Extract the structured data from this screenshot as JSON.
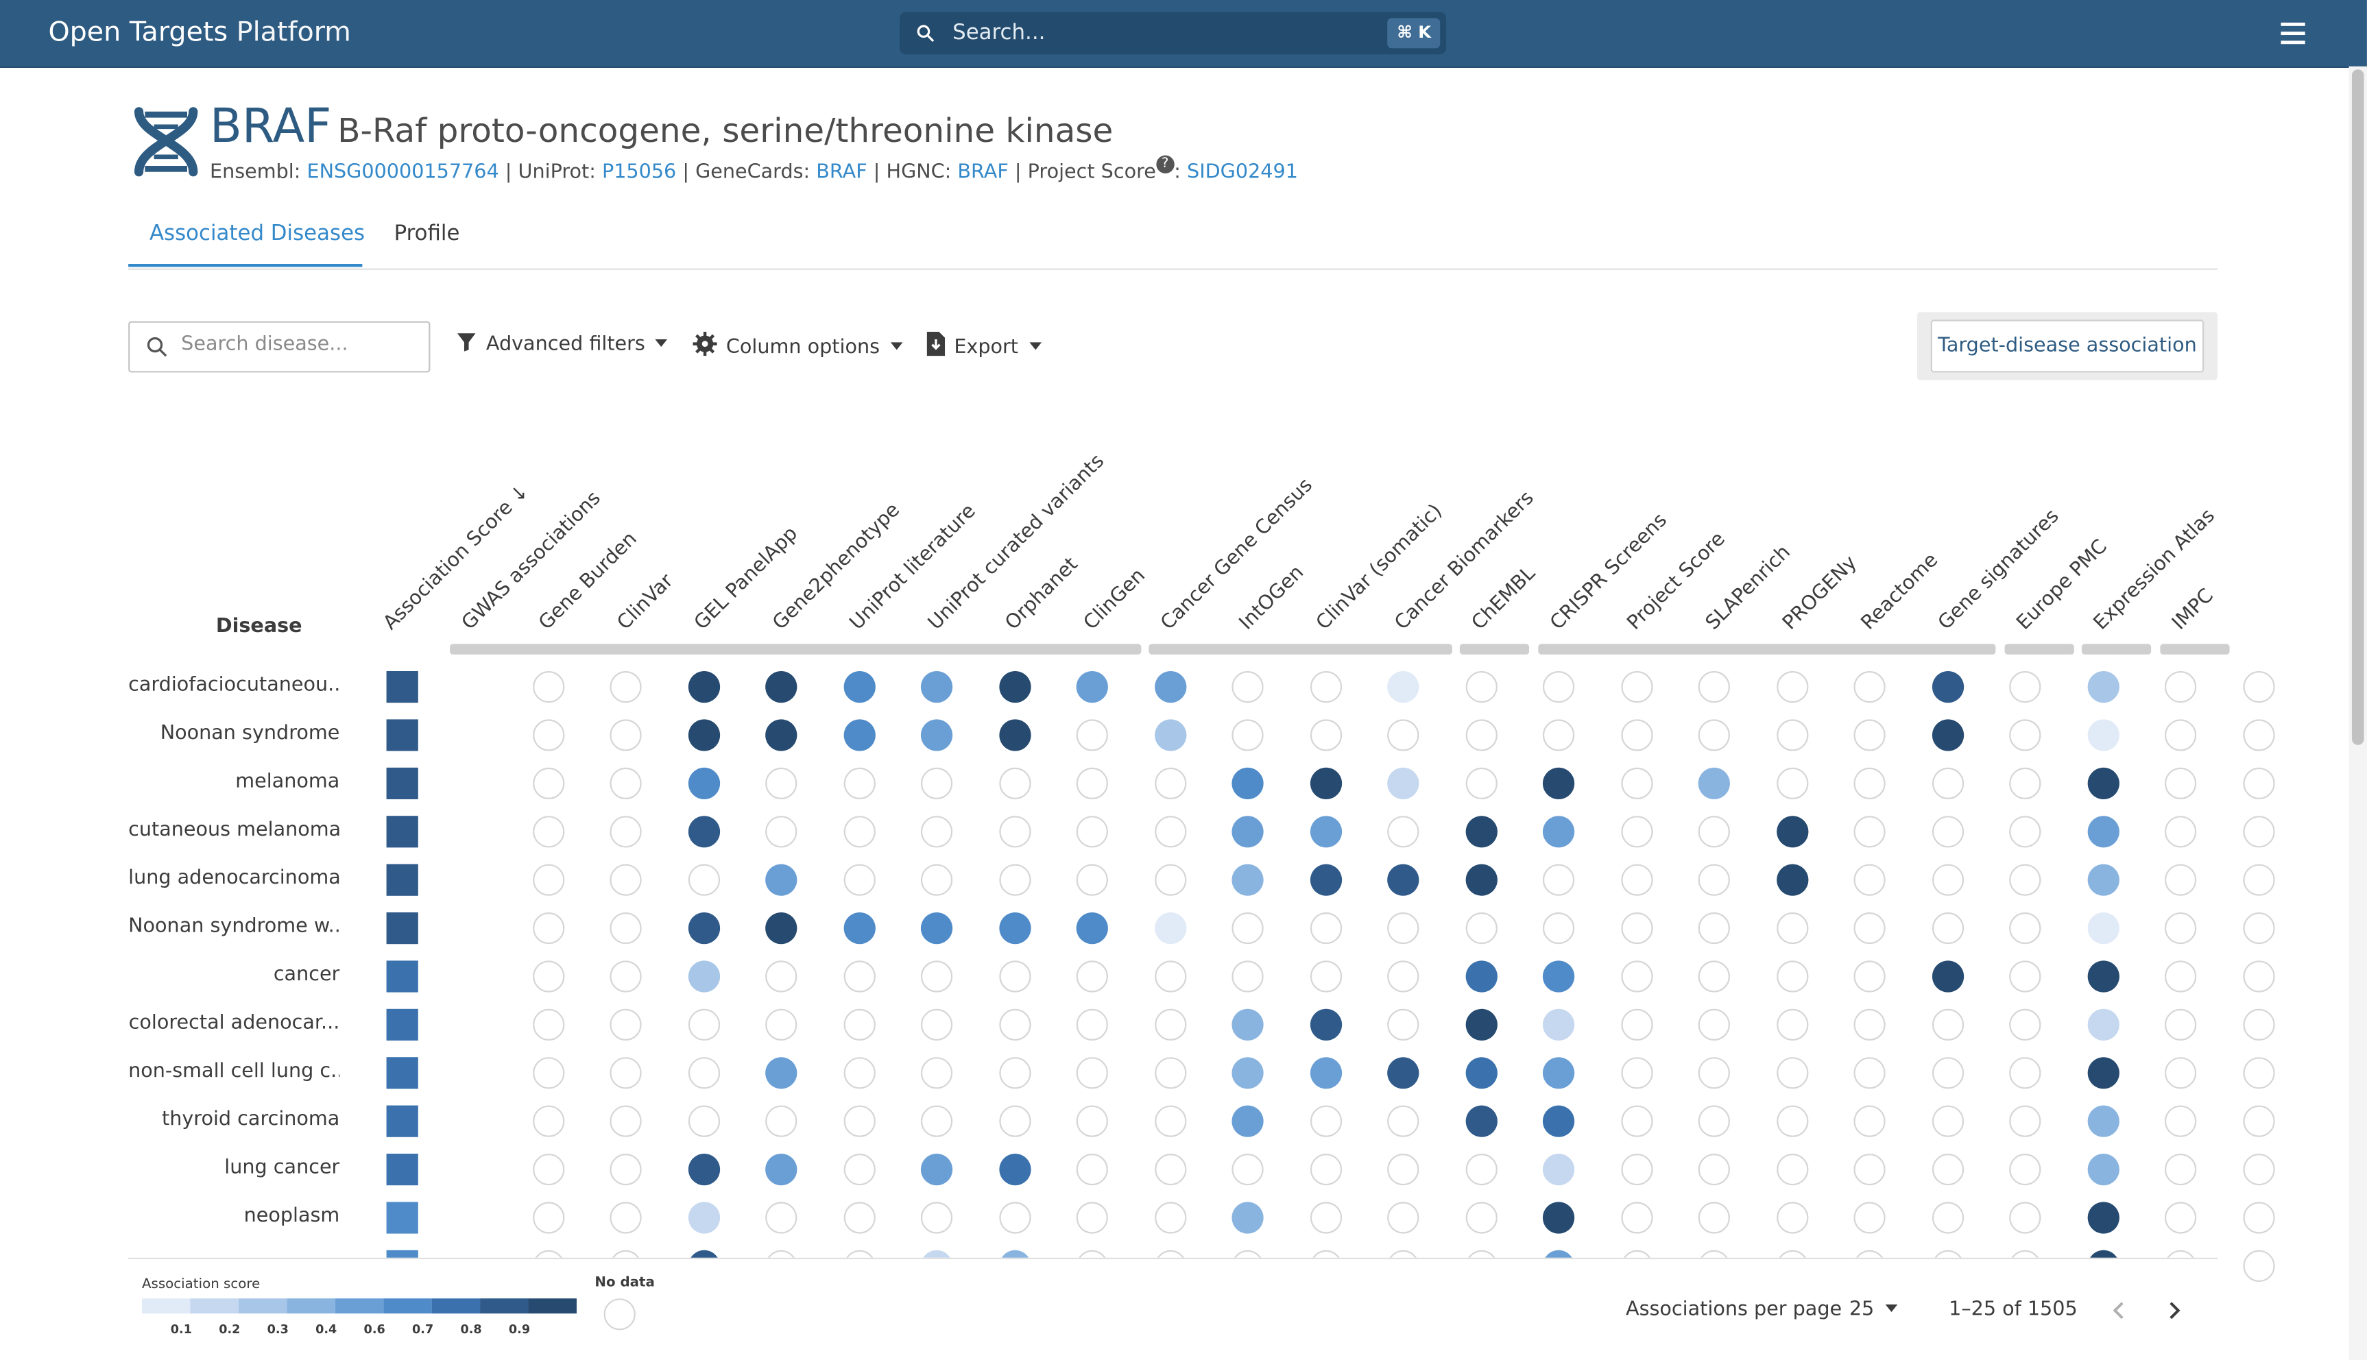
{
  "header": {
    "brand_bold": "Open Targets",
    "brand_light": "Platform",
    "search_placeholder": "Search...",
    "search_shortcut": "⌘ K"
  },
  "target": {
    "symbol": "BRAF",
    "name": "B-Raf proto-oncogene, serine/threonine kinase",
    "xrefs": [
      {
        "label": "Ensembl:",
        "value": "ENSG00000157764"
      },
      {
        "label": "UniProt:",
        "value": "P15056"
      },
      {
        "label": "GeneCards:",
        "value": "BRAF"
      },
      {
        "label": "HGNC:",
        "value": "BRAF"
      },
      {
        "label": "Project Score",
        "value": "SIDG02491"
      }
    ]
  },
  "tabs": [
    {
      "label": "Associated Diseases",
      "active": true
    },
    {
      "label": "Profile",
      "active": false
    }
  ],
  "toolbar": {
    "search_placeholder": "Search disease...",
    "advanced_filters": "Advanced filters",
    "column_options": "Column options",
    "export": "Export",
    "tda_button": "Target-disease association"
  },
  "table": {
    "disease_header": "Disease",
    "columns": [
      "Association Score ↓",
      "GWAS associations",
      "Gene Burden",
      "ClinVar",
      "GEL PanelApp",
      "Gene2phenotype",
      "UniProt literature",
      "UniProt curated variants",
      "Orphanet",
      "ClinGen",
      "Cancer Gene Census",
      "IntOGen",
      "ClinVar (somatic)",
      "Cancer Biomarkers",
      "ChEMBL",
      "CRISPR Screens",
      "Project Score",
      "SLAPenrich",
      "PROGENy",
      "Reactome",
      "Gene signatures",
      "Europe PMC",
      "Expression Atlas",
      "IMPC"
    ],
    "rows": [
      {
        "disease": "cardiofaciocutaneou...",
        "score": 0.8,
        "cells": [
          0,
          0,
          0.9,
          0.9,
          0.6,
          0.5,
          0.9,
          0.5,
          0.5,
          0,
          0,
          0.1,
          0,
          0,
          0,
          0,
          0,
          0,
          0.8,
          0,
          0.3,
          0,
          0
        ]
      },
      {
        "disease": "Noonan syndrome",
        "score": 0.8,
        "cells": [
          0,
          0,
          0.9,
          0.9,
          0.6,
          0.5,
          0.9,
          0,
          0.3,
          0,
          0,
          0,
          0,
          0,
          0,
          0,
          0,
          0,
          0.9,
          0,
          0.1,
          0,
          0
        ]
      },
      {
        "disease": "melanoma",
        "score": 0.8,
        "cells": [
          0,
          0,
          0.6,
          0,
          0,
          0,
          0,
          0,
          0,
          0.6,
          0.9,
          0.2,
          0,
          0.9,
          0,
          0.4,
          0,
          0,
          0,
          0,
          0.9,
          0,
          0
        ]
      },
      {
        "disease": "cutaneous melanoma",
        "score": 0.8,
        "cells": [
          0,
          0,
          0.8,
          0,
          0,
          0,
          0,
          0,
          0,
          0.5,
          0.5,
          0,
          0.9,
          0.5,
          0,
          0,
          0.9,
          0,
          0,
          0,
          0.5,
          0,
          0
        ]
      },
      {
        "disease": "lung adenocarcinoma",
        "score": 0.8,
        "cells": [
          0,
          0,
          0,
          0.5,
          0,
          0,
          0,
          0,
          0,
          0.4,
          0.8,
          0.8,
          0.9,
          0,
          0,
          0,
          0.9,
          0,
          0,
          0,
          0.4,
          0,
          0
        ]
      },
      {
        "disease": "Noonan syndrome w...",
        "score": 0.8,
        "cells": [
          0,
          0,
          0.8,
          0.9,
          0.6,
          0.6,
          0.6,
          0.6,
          0.1,
          0,
          0,
          0,
          0,
          0,
          0,
          0,
          0,
          0,
          0,
          0,
          0.1,
          0,
          0
        ]
      },
      {
        "disease": "cancer",
        "score": 0.7,
        "cells": [
          0,
          0,
          0.3,
          0,
          0,
          0,
          0,
          0,
          0,
          0,
          0,
          0,
          0.7,
          0.6,
          0,
          0,
          0,
          0,
          0.9,
          0,
          0.9,
          0,
          0
        ]
      },
      {
        "disease": "colorectal adenocar...",
        "score": 0.7,
        "cells": [
          0,
          0,
          0,
          0,
          0,
          0,
          0,
          0,
          0,
          0.4,
          0.8,
          0,
          0.9,
          0.2,
          0,
          0,
          0,
          0,
          0,
          0,
          0.2,
          0,
          0
        ]
      },
      {
        "disease": "non-small cell lung c...",
        "score": 0.7,
        "cells": [
          0,
          0,
          0,
          0.5,
          0,
          0,
          0,
          0,
          0,
          0.4,
          0.5,
          0.8,
          0.7,
          0.5,
          0,
          0,
          0,
          0,
          0,
          0,
          0.9,
          0,
          0
        ]
      },
      {
        "disease": "thyroid carcinoma",
        "score": 0.7,
        "cells": [
          0,
          0,
          0,
          0,
          0,
          0,
          0,
          0,
          0,
          0.5,
          0,
          0,
          0.8,
          0.7,
          0,
          0,
          0,
          0,
          0,
          0,
          0.4,
          0,
          0
        ]
      },
      {
        "disease": "lung cancer",
        "score": 0.7,
        "cells": [
          0,
          0,
          0.8,
          0.5,
          0,
          0.5,
          0.7,
          0,
          0,
          0,
          0,
          0,
          0,
          0.2,
          0,
          0,
          0,
          0,
          0,
          0,
          0.4,
          0,
          0
        ]
      },
      {
        "disease": "neoplasm",
        "score": 0.6,
        "cells": [
          0,
          0,
          0.2,
          0,
          0,
          0,
          0,
          0,
          0,
          0.4,
          0,
          0,
          0,
          0.9,
          0,
          0,
          0,
          0,
          0,
          0,
          0.9,
          0,
          0
        ]
      },
      {
        "disease": "",
        "score": 0.6,
        "cells": [
          0,
          0,
          0.8,
          0,
          0,
          0.2,
          0.4,
          0,
          0,
          0,
          0,
          0,
          0,
          0.5,
          0,
          0,
          0,
          0,
          0,
          0,
          0.9,
          0,
          0
        ]
      }
    ]
  },
  "legend": {
    "title": "Association score",
    "ticks": [
      "0.1",
      "0.2",
      "0.3",
      "0.4",
      "0.6",
      "0.7",
      "0.8",
      "0.9"
    ],
    "colors": [
      "#e1eaf7",
      "#c5d8ef",
      "#a8c6e8",
      "#8ab4e0",
      "#6a9fd6",
      "#4f8bc9",
      "#3b72ae",
      "#2f5a8a",
      "#264a70"
    ],
    "no_data": "No data"
  },
  "pagination": {
    "label": "Associations per page",
    "per_page": "25",
    "range": "1–25 of 1505"
  }
}
